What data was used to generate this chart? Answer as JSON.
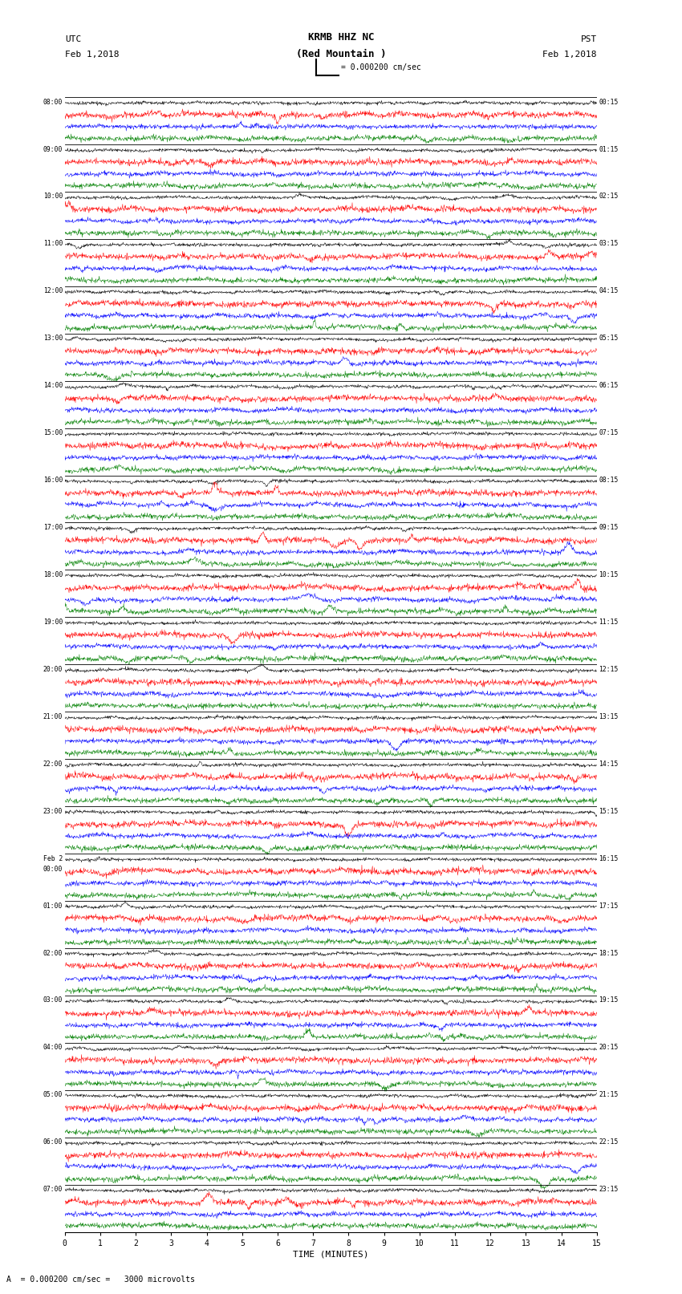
{
  "title_line1": "KRMB HHZ NC",
  "title_line2": "(Red Mountain )",
  "scale_label": "= 0.000200 cm/sec",
  "bottom_label": "A  = 0.000200 cm/sec =   3000 microvolts",
  "xlabel": "TIME (MINUTES)",
  "utc_times_left": [
    "08:00",
    "09:00",
    "10:00",
    "11:00",
    "12:00",
    "13:00",
    "14:00",
    "15:00",
    "16:00",
    "17:00",
    "18:00",
    "19:00",
    "20:00",
    "21:00",
    "22:00",
    "23:00",
    "Feb 2\n00:00",
    "01:00",
    "02:00",
    "03:00",
    "04:00",
    "05:00",
    "06:00",
    "07:00"
  ],
  "pst_times_right": [
    "00:15",
    "01:15",
    "02:15",
    "03:15",
    "04:15",
    "05:15",
    "06:15",
    "07:15",
    "08:15",
    "09:15",
    "10:15",
    "11:15",
    "12:15",
    "13:15",
    "14:15",
    "15:15",
    "16:15",
    "17:15",
    "18:15",
    "19:15",
    "20:15",
    "21:15",
    "22:15",
    "23:15"
  ],
  "n_rows": 24,
  "traces_per_row": 4,
  "trace_colors": [
    "black",
    "red",
    "blue",
    "green"
  ],
  "minutes": 15,
  "background_color": "white",
  "fig_width": 8.5,
  "fig_height": 16.13,
  "dpi": 100
}
